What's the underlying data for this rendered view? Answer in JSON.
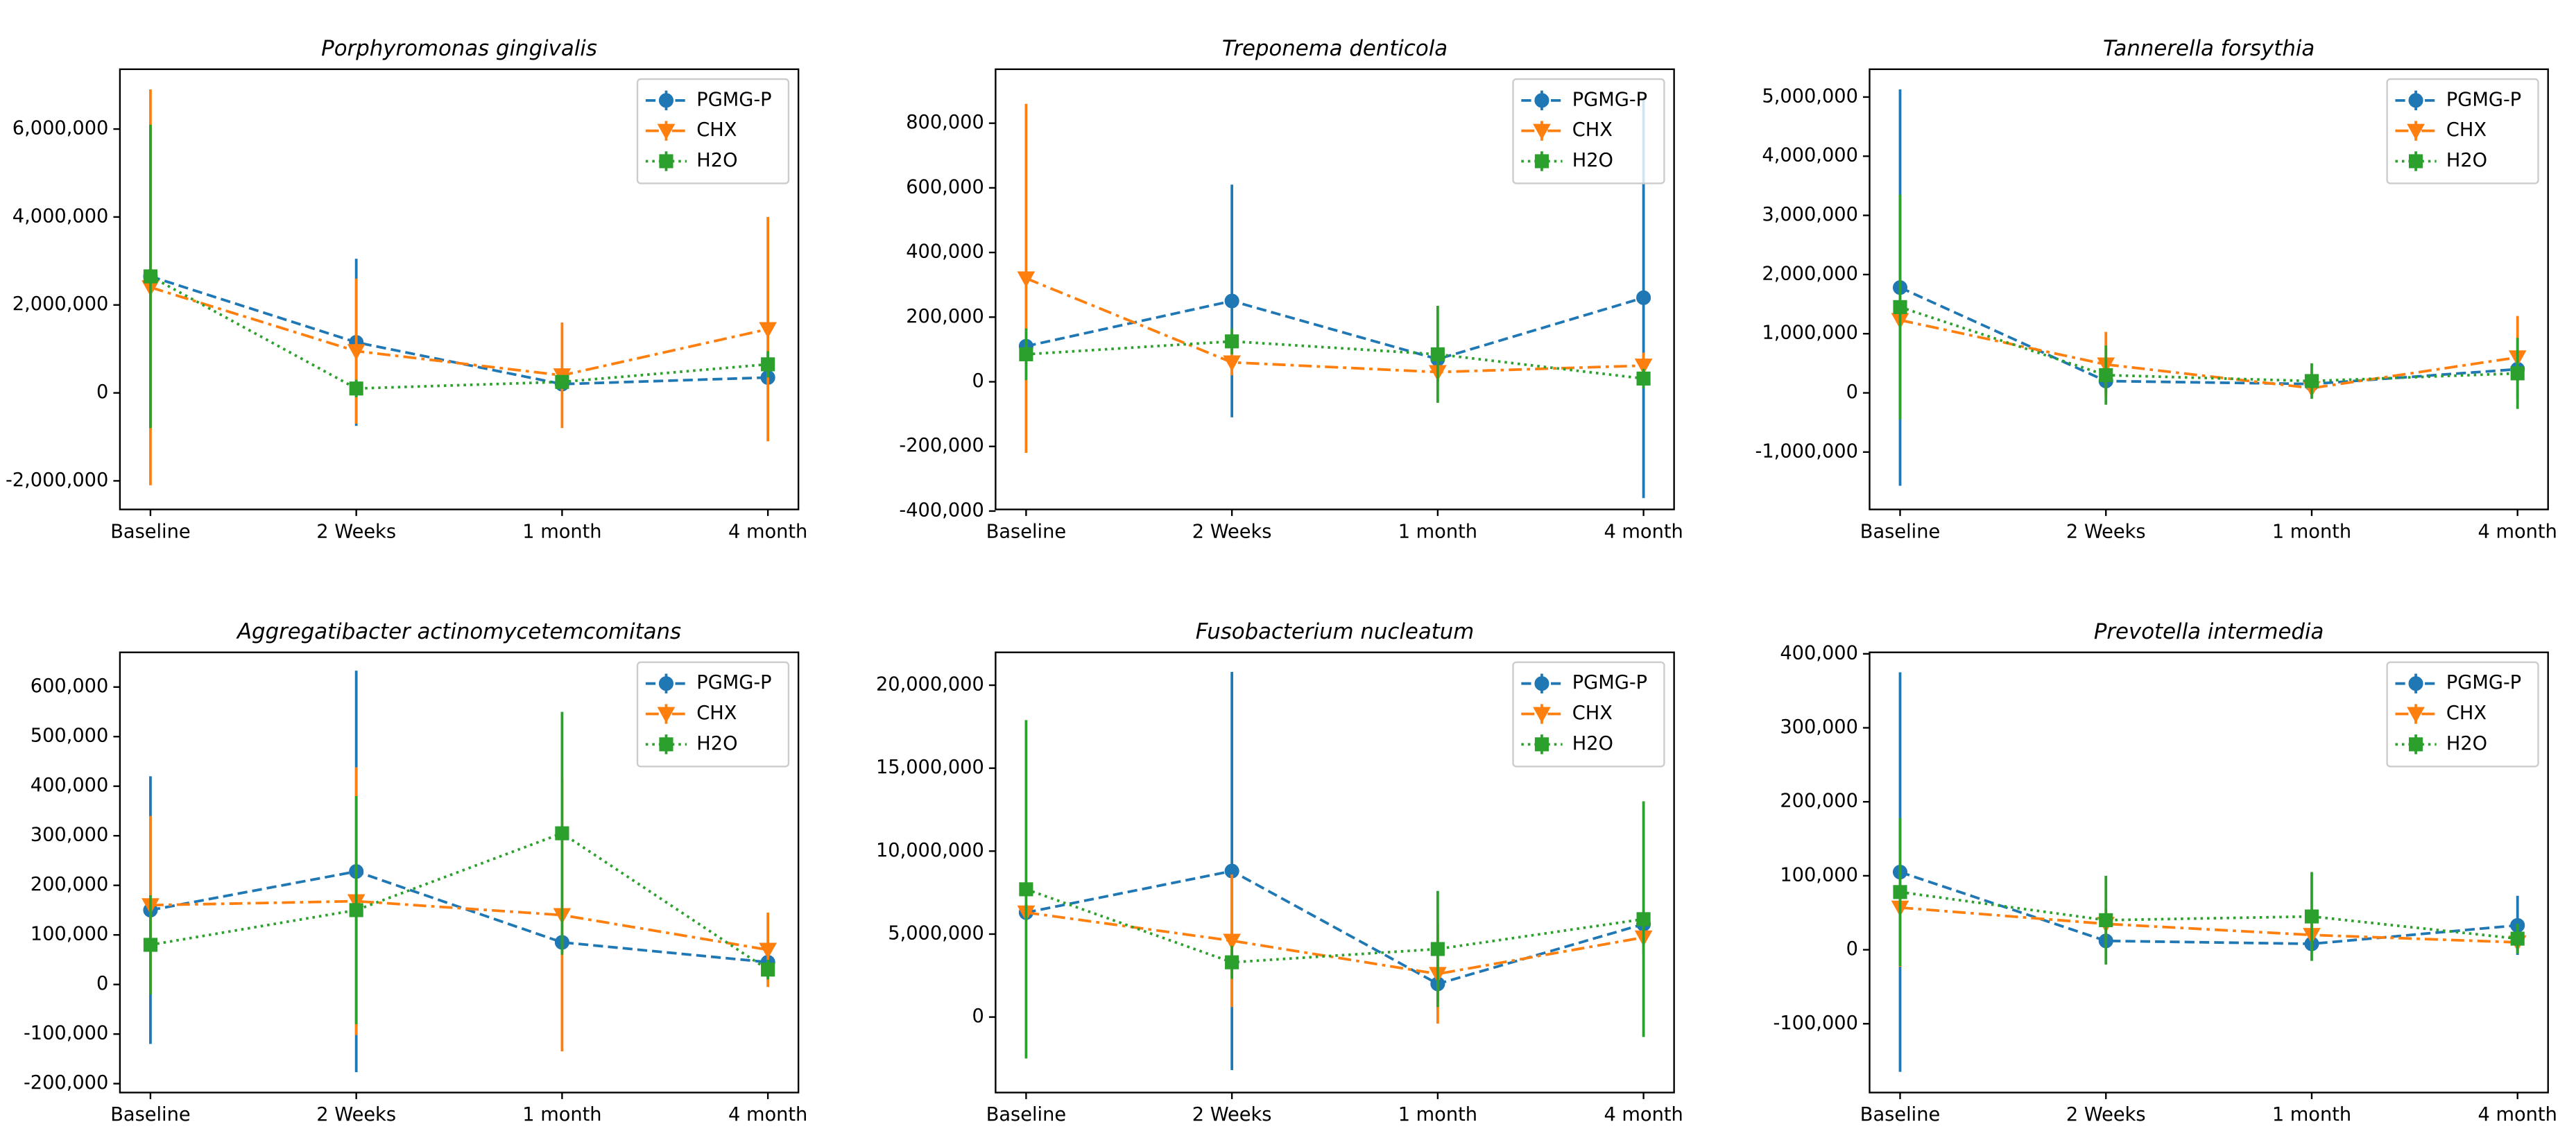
{
  "chart_data": [
    {
      "type": "line",
      "title": "Porphyromonas gingivalis",
      "categories": [
        "Baseline",
        "2 Weeks",
        "1 month",
        "4 month"
      ],
      "ylim": [
        -2650000,
        7360000
      ],
      "yticks": [
        {
          "value": -2000000,
          "label": "-2,000,000"
        },
        0,
        {
          "value": 2000000,
          "label": "2,000,000"
        },
        {
          "value": 4000000,
          "label": "4,000,000"
        },
        {
          "value": 6000000,
          "label": "6,000,000"
        }
      ],
      "legend": "upper right",
      "series": [
        {
          "name": "PGMG-P",
          "color": "#1f77b4",
          "linestyle": "dashed",
          "marker": "o",
          "values": [
            2650000,
            1150000,
            200000,
            350000
          ],
          "errors": [
            3400000,
            1900000,
            150000,
            150000
          ]
        },
        {
          "name": "CHX",
          "color": "#ff7f0e",
          "linestyle": "dashdot",
          "marker": "v",
          "values": [
            2400000,
            950000,
            400000,
            1450000
          ],
          "errors": [
            4500000,
            1650000,
            1200000,
            2550000
          ]
        },
        {
          "name": "H2O",
          "color": "#2ca02c",
          "linestyle": "dotted",
          "marker": "s",
          "values": [
            2650000,
            100000,
            250000,
            650000
          ],
          "errors": [
            3450000,
            200000,
            150000,
            300000
          ]
        }
      ]
    },
    {
      "type": "line",
      "title": "Treponema denticola",
      "categories": [
        "Baseline",
        "2 Weeks",
        "1 month",
        "4 month"
      ],
      "ylim": [
        -395000,
        967000
      ],
      "yticks": [
        {
          "value": -400000,
          "label": "-400,000"
        },
        {
          "value": -200000,
          "label": "-200,000"
        },
        0,
        {
          "value": 200000,
          "label": "200,000"
        },
        {
          "value": 400000,
          "label": "400,000"
        },
        {
          "value": 600000,
          "label": "600,000"
        },
        {
          "value": 800000,
          "label": "800,000"
        }
      ],
      "legend": "upper right",
      "series": [
        {
          "name": "PGMG-P",
          "color": "#1f77b4",
          "linestyle": "dashed",
          "marker": "o",
          "values": [
            110000,
            250000,
            70000,
            260000
          ],
          "errors": [
            60000,
            360000,
            20000,
            620000
          ]
        },
        {
          "name": "CHX",
          "color": "#ff7f0e",
          "linestyle": "dashdot",
          "marker": "v",
          "values": [
            320000,
            60000,
            30000,
            50000
          ],
          "errors": [
            540000,
            40000,
            30000,
            40000
          ]
        },
        {
          "name": "H2O",
          "color": "#2ca02c",
          "linestyle": "dotted",
          "marker": "s",
          "values": [
            85000,
            125000,
            85000,
            10000
          ],
          "errors": [
            80000,
            40000,
            150000,
            30000
          ]
        }
      ]
    },
    {
      "type": "line",
      "title": "Tannerella forsythia",
      "categories": [
        "Baseline",
        "2 Weeks",
        "1 month",
        "4 month"
      ],
      "ylim": [
        -1970000,
        5470000
      ],
      "yticks": [
        {
          "value": -1000000,
          "label": "-1,000,000"
        },
        0,
        {
          "value": 1000000,
          "label": "1,000,000"
        },
        {
          "value": 2000000,
          "label": "2,000,000"
        },
        {
          "value": 3000000,
          "label": "3,000,000"
        },
        {
          "value": 4000000,
          "label": "4,000,000"
        },
        {
          "value": 5000000,
          "label": "5,000,000"
        }
      ],
      "legend": "upper right",
      "series": [
        {
          "name": "PGMG-P",
          "color": "#1f77b4",
          "linestyle": "dashed",
          "marker": "o",
          "values": [
            1780000,
            200000,
            150000,
            400000
          ],
          "errors": [
            3350000,
            200000,
            100000,
            200000
          ]
        },
        {
          "name": "CHX",
          "color": "#ff7f0e",
          "linestyle": "dashdot",
          "marker": "v",
          "values": [
            1230000,
            480000,
            80000,
            600000
          ],
          "errors": [
            500000,
            550000,
            100000,
            700000
          ]
        },
        {
          "name": "H2O",
          "color": "#2ca02c",
          "linestyle": "dotted",
          "marker": "s",
          "values": [
            1450000,
            300000,
            200000,
            330000
          ],
          "errors": [
            1900000,
            500000,
            300000,
            600000
          ]
        }
      ]
    },
    {
      "type": "line",
      "title": "Aggregatibacter actinomycetemcomitans",
      "categories": [
        "Baseline",
        "2 Weeks",
        "1 month",
        "4 month"
      ],
      "ylim": [
        -218000,
        670000
      ],
      "yticks": [
        {
          "value": -200000,
          "label": "-200,000"
        },
        {
          "value": -100000,
          "label": "-100,000"
        },
        0,
        {
          "value": 100000,
          "label": "100,000"
        },
        {
          "value": 200000,
          "label": "200,000"
        },
        {
          "value": 300000,
          "label": "300,000"
        },
        {
          "value": 400000,
          "label": "400,000"
        },
        {
          "value": 500000,
          "label": "500,000"
        },
        {
          "value": 600000,
          "label": "600,000"
        }
      ],
      "legend": "upper right",
      "series": [
        {
          "name": "PGMG-P",
          "color": "#1f77b4",
          "linestyle": "dashed",
          "marker": "o",
          "values": [
            150000,
            228000,
            85000,
            45000
          ],
          "errors": [
            270000,
            405000,
            20000,
            10000
          ]
        },
        {
          "name": "CHX",
          "color": "#ff7f0e",
          "linestyle": "dashdot",
          "marker": "v",
          "values": [
            160000,
            168000,
            140000,
            70000
          ],
          "errors": [
            180000,
            270000,
            275000,
            75000
          ]
        },
        {
          "name": "H2O",
          "color": "#2ca02c",
          "linestyle": "dotted",
          "marker": "s",
          "values": [
            80000,
            150000,
            305000,
            30000
          ],
          "errors": [
            100000,
            230000,
            245000,
            20000
          ]
        }
      ]
    },
    {
      "type": "line",
      "title": "Fusobacterium nucleatum",
      "categories": [
        "Baseline",
        "2 Weeks",
        "1 month",
        "4 month"
      ],
      "ylim": [
        -4550000,
        21980000
      ],
      "yticks": [
        0,
        {
          "value": 5000000,
          "label": "5,000,000"
        },
        {
          "value": 10000000,
          "label": "10,000,000"
        },
        {
          "value": 15000000,
          "label": "15,000,000"
        },
        {
          "value": 20000000,
          "label": "20,000,000"
        }
      ],
      "legend": "upper right",
      "series": [
        {
          "name": "PGMG-P",
          "color": "#1f77b4",
          "linestyle": "dashed",
          "marker": "o",
          "values": [
            6300000,
            8800000,
            2000000,
            5600000
          ],
          "errors": [
            500000,
            12000000,
            1000000,
            500000
          ]
        },
        {
          "name": "CHX",
          "color": "#ff7f0e",
          "linestyle": "dashdot",
          "marker": "v",
          "values": [
            6300000,
            4600000,
            2600000,
            4800000
          ],
          "errors": [
            500000,
            4000000,
            3000000,
            1000000
          ]
        },
        {
          "name": "H2O",
          "color": "#2ca02c",
          "linestyle": "dotted",
          "marker": "s",
          "values": [
            7700000,
            3300000,
            4100000,
            5900000
          ],
          "errors": [
            10200000,
            1000000,
            3500000,
            7100000
          ]
        }
      ]
    },
    {
      "type": "line",
      "title": "Prevotella intermedia",
      "categories": [
        "Baseline",
        "2 Weeks",
        "1 month",
        "4 month"
      ],
      "ylim": [
        -193000,
        402000
      ],
      "yticks": [
        {
          "value": -100000,
          "label": "-100,000"
        },
        0,
        {
          "value": 100000,
          "label": "100,000"
        },
        {
          "value": 200000,
          "label": "200,000"
        },
        {
          "value": 300000,
          "label": "300,000"
        },
        {
          "value": 400000,
          "label": "400,000"
        }
      ],
      "legend": "upper right",
      "series": [
        {
          "name": "PGMG-P",
          "color": "#1f77b4",
          "linestyle": "dashed",
          "marker": "o",
          "values": [
            105000,
            12000,
            8000,
            33000
          ],
          "errors": [
            270000,
            10000,
            10000,
            40000
          ]
        },
        {
          "name": "CHX",
          "color": "#ff7f0e",
          "linestyle": "dashdot",
          "marker": "v",
          "values": [
            57000,
            35000,
            20000,
            10000
          ],
          "errors": [
            80000,
            20000,
            20000,
            15000
          ]
        },
        {
          "name": "H2O",
          "color": "#2ca02c",
          "linestyle": "dotted",
          "marker": "s",
          "values": [
            78000,
            40000,
            45000,
            15000
          ],
          "errors": [
            100000,
            60000,
            60000,
            20000
          ]
        }
      ]
    }
  ]
}
